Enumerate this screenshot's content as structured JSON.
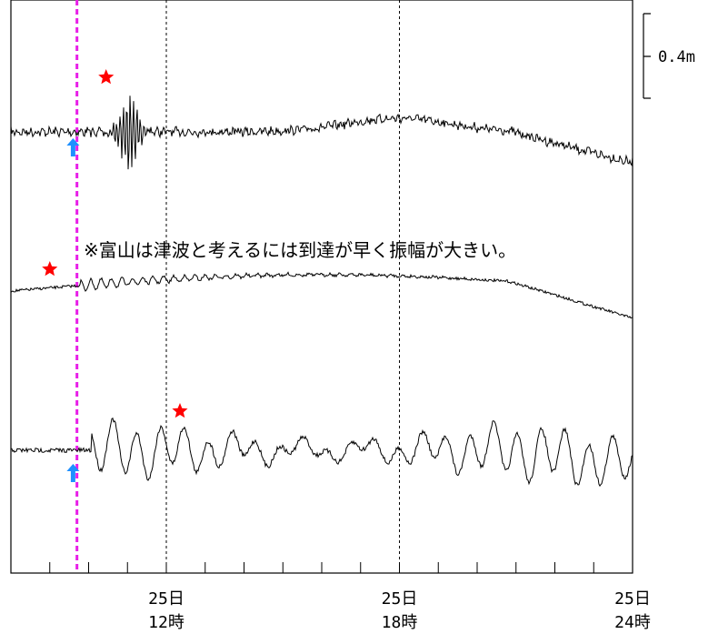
{
  "chart_data": {
    "type": "line",
    "scale_bar_label": "0.4m",
    "annotation": "※富山は津波と考えるには到達が早く振幅が大きい。",
    "x_ticks": [
      {
        "hour": 12,
        "day": "25日",
        "time": "12時"
      },
      {
        "hour": 18,
        "day": "25日",
        "time": "18時"
      },
      {
        "hour": 24,
        "day": "25日",
        "time": "24時"
      }
    ],
    "xlim_hours": [
      8,
      24
    ],
    "series": [
      {
        "key": "trace1",
        "label": "",
        "star_hour": 10.45,
        "arrow_hour": 9.6
      },
      {
        "key": "trace2",
        "label": "",
        "star_hour": 9.0,
        "arrow_hour": null
      },
      {
        "key": "trace3",
        "label": "",
        "star_hour": 12.35,
        "arrow_hour": 9.6
      }
    ],
    "event_line_hour": 9.7,
    "colors": {
      "event_line": "#e81ee8",
      "star": "#ff0000",
      "arrow": "#1e90ff",
      "trace": "#000000"
    }
  }
}
